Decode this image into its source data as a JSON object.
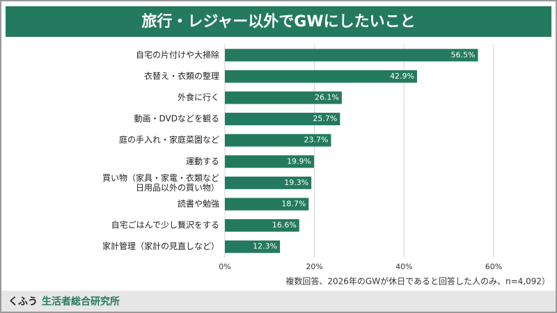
{
  "chart_data": {
    "type": "barh",
    "title": "旅行・レジャー以外でGWにしたいこと",
    "categories": [
      "自宅の片付けや大掃除",
      "衣替え・衣類の整理",
      "外食に行く",
      "動画・DVDなどを観る",
      "庭の手入れ・家庭菜園など",
      "運動する",
      "買い物（家具・家電・衣類など\n日用品以外の買い物）",
      "読書や勉強",
      "自宅ごはんで少し贅沢をする",
      "家計管理（家計の見直しなど）"
    ],
    "values": [
      56.5,
      42.9,
      26.1,
      25.7,
      23.7,
      19.9,
      19.3,
      18.7,
      16.6,
      12.3
    ],
    "value_labels": [
      "56.5%",
      "42.9%",
      "26.1%",
      "25.7%",
      "23.7%",
      "19.9%",
      "19.3%",
      "18.7%",
      "16.6%",
      "12.3%"
    ],
    "color": "#247a5e",
    "xlim": [
      0,
      60
    ],
    "xticks": [
      {
        "value": 0,
        "label": "0%"
      },
      {
        "value": 20,
        "label": "20%"
      },
      {
        "value": 40,
        "label": "40%"
      },
      {
        "value": 60,
        "label": "60%"
      }
    ],
    "grid": true,
    "note": "複数回答、2026年のGWが休日であると回答した人のみ、n=4,092）"
  },
  "footer": {
    "brand": "くふう",
    "org": "生活者総合研究所"
  }
}
